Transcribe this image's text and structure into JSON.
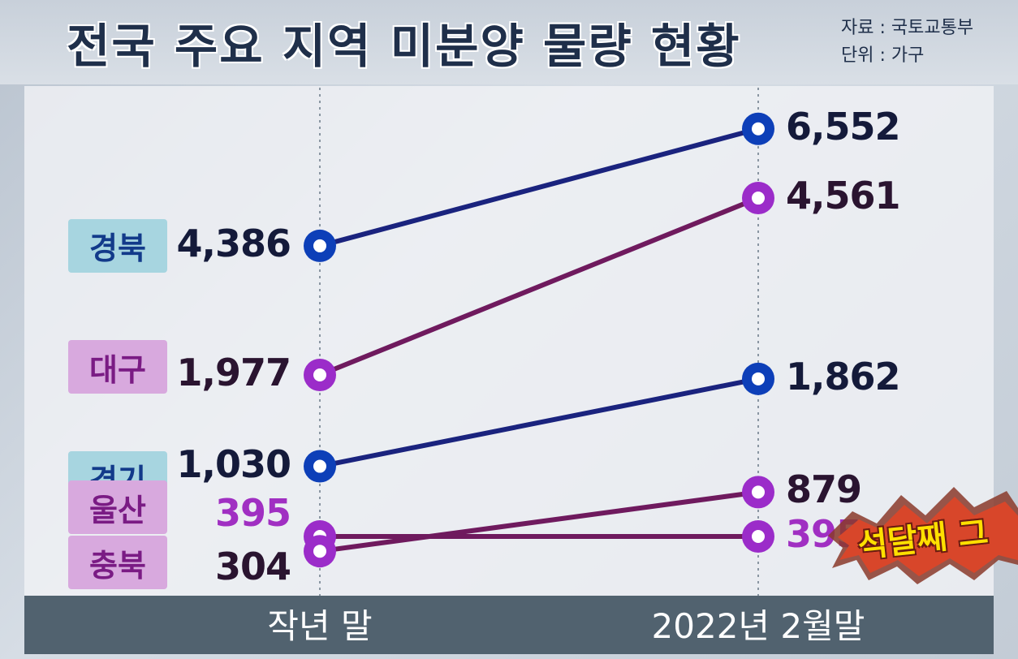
{
  "title": "전국 주요 지역 미분양 물량 현황",
  "source_line": "자료 : 국토교통부",
  "unit_line": "단위 : 가구",
  "badge_text": "석달째 그",
  "colors": {
    "blue_series": "#1a237e",
    "purple_series": "#6f1a5e",
    "blue_marker": "#0d3fb8",
    "purple_marker": "#9b2cc9"
  },
  "chart_data": {
    "type": "line",
    "title": "전국 주요 지역 미분양 물량 현황",
    "x": [
      "작년 말",
      "2022년 2월말"
    ],
    "series": [
      {
        "name": "경북",
        "values": [
          4386,
          6552
        ],
        "labels": [
          "4,386",
          "6,552"
        ],
        "color": "blue"
      },
      {
        "name": "대구",
        "values": [
          1977,
          4561
        ],
        "labels": [
          "1,977",
          "4,561"
        ],
        "color": "purple"
      },
      {
        "name": "경기",
        "values": [
          1030,
          1862
        ],
        "labels": [
          "1,030",
          "1,862"
        ],
        "color": "blue"
      },
      {
        "name": "울산",
        "values": [
          395,
          395
        ],
        "labels": [
          "395",
          "395"
        ],
        "color": "purple"
      },
      {
        "name": "충북",
        "values": [
          304,
          879
        ],
        "labels": [
          "304",
          "879"
        ],
        "color": "purple"
      }
    ]
  }
}
